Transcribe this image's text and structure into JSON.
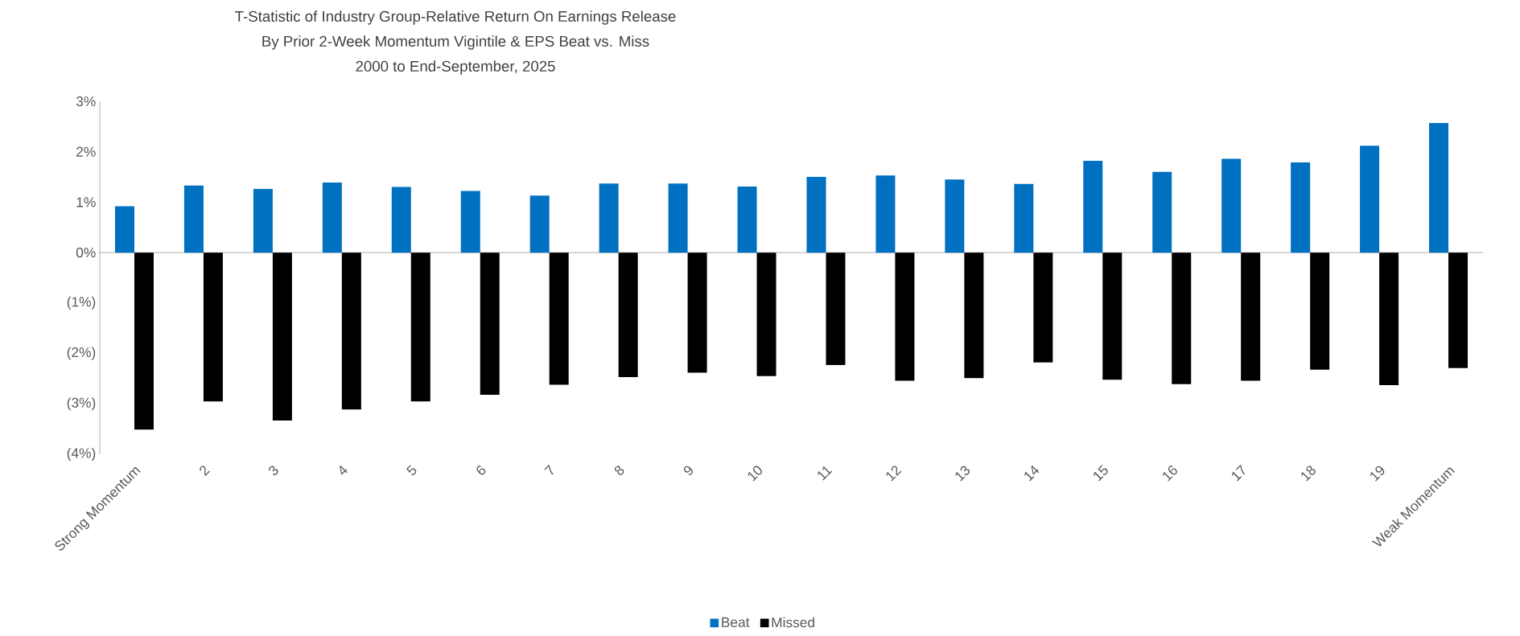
{
  "chart_data": {
    "type": "bar",
    "title": "T-Statistic of Industry Group-Relative Return On Earnings Release",
    "subtitle": "By Prior 2-Week Momentum Vigintile & EPS Beat vs. Miss",
    "annotations": [
      "2000 to End-September, 2025"
    ],
    "categories": [
      "Strong Momentum",
      "2",
      "3",
      "4",
      "5",
      "6",
      "7",
      "8",
      "9",
      "10",
      "11",
      "12",
      "13",
      "14",
      "15",
      "16",
      "17",
      "18",
      "19",
      "Weak Momentum"
    ],
    "series": [
      {
        "name": "Beat",
        "color": "#0070c0",
        "values": [
          0.92,
          1.33,
          1.26,
          1.39,
          1.3,
          1.22,
          1.13,
          1.37,
          1.37,
          1.31,
          1.5,
          1.53,
          1.45,
          1.36,
          1.82,
          1.6,
          1.86,
          1.79,
          2.12,
          2.57
        ]
      },
      {
        "name": "Missed",
        "color": "#000000",
        "values": [
          -3.51,
          -2.95,
          -3.33,
          -3.11,
          -2.95,
          -2.82,
          -2.62,
          -2.47,
          -2.38,
          -2.45,
          -2.23,
          -2.54,
          -2.49,
          -2.18,
          -2.52,
          -2.61,
          -2.54,
          -2.32,
          -2.63,
          -2.29
        ]
      }
    ],
    "ylim": [
      -4,
      3
    ],
    "yticks": [
      {
        "value": -4,
        "label": "(4%)"
      },
      {
        "value": -3,
        "label": "(3%)"
      },
      {
        "value": -2,
        "label": "(2%)"
      },
      {
        "value": -1,
        "label": "(1%)"
      },
      {
        "value": 0,
        "label": "0%"
      },
      {
        "value": 1,
        "label": "1%"
      },
      {
        "value": 2,
        "label": "2%"
      },
      {
        "value": 3,
        "label": "3%"
      }
    ],
    "legend": "bottom"
  }
}
